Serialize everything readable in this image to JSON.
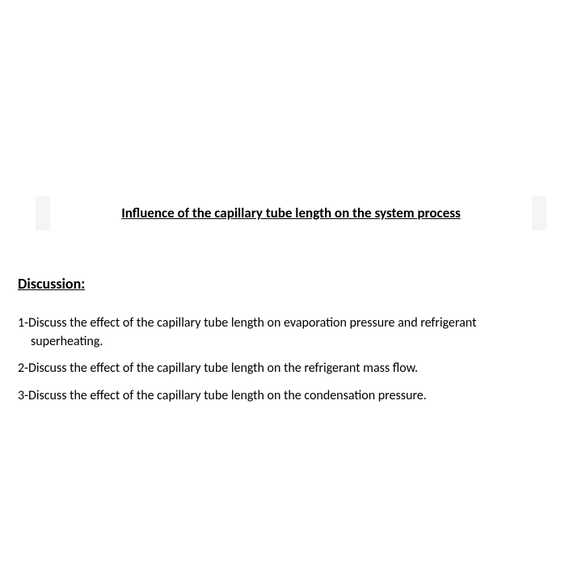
{
  "title": "Influence of the capillary tube length on the system process",
  "section_heading": "Discussion:",
  "items": {
    "i1_line1": "1-Discuss the effect of the capillary tube length on evaporation pressure and refrigerant",
    "i1_line2": "superheating.",
    "i2": "2-Discuss the effect of the capillary tube length on the refrigerant mass flow.",
    "i3": "3-Discuss the effect of the capillary tube length on the condensation pressure."
  },
  "colors": {
    "background": "#ffffff",
    "text": "#000000",
    "side_block": "#f5f5f5"
  },
  "typography": {
    "title_fontsize": 17,
    "title_weight": "bold",
    "heading_fontsize": 18,
    "heading_weight": "bold",
    "body_fontsize": 16,
    "font_family": "Calibri, Arial, sans-serif"
  }
}
